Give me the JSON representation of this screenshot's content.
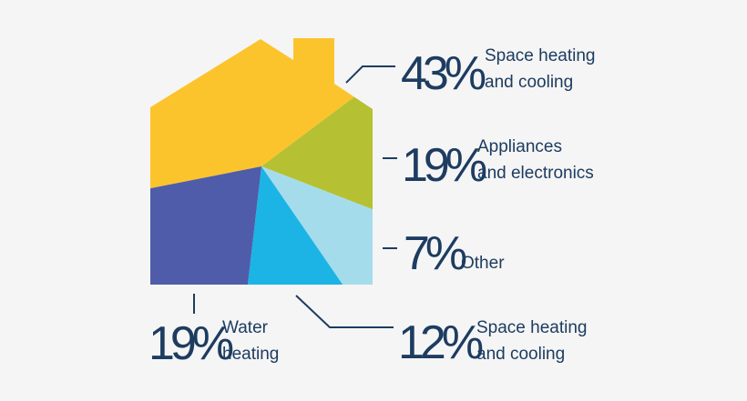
{
  "chart_data": {
    "type": "pie",
    "shape": "house",
    "slices": [
      {
        "value": 43,
        "value_label": "43%",
        "label_lines": [
          "Space heating",
          "and cooling"
        ],
        "color": "#fcc42c"
      },
      {
        "value": 19,
        "value_label": "19%",
        "label_lines": [
          "Appliances",
          "and electronics"
        ],
        "color": "#b5c133"
      },
      {
        "value": 7,
        "value_label": "7%",
        "label_lines": [
          "Other"
        ],
        "color": "#a5dcec"
      },
      {
        "value": 12,
        "value_label": "12%",
        "label_lines": [
          "Space heating",
          "and cooling"
        ],
        "color": "#1cb4e4"
      },
      {
        "value": 19,
        "value_label": "19%",
        "label_lines": [
          "Water",
          "heating"
        ],
        "color": "#4e5caa"
      }
    ]
  },
  "colors": {
    "text": "#1d3c60",
    "background": "#f5f5f5"
  }
}
